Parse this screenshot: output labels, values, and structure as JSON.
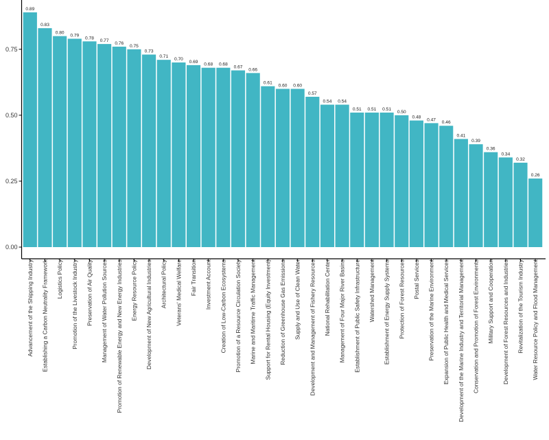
{
  "colors": {
    "bar": "#41b6c4",
    "axis": "#000000",
    "text": "#333333"
  },
  "chart_data": {
    "type": "bar",
    "title": "",
    "xlabel": "",
    "ylabel": "",
    "ylim": [
      0,
      0.89
    ],
    "grid": false,
    "y_ticks": [
      "0.00",
      "0.25",
      "0.50",
      "0.75"
    ],
    "y_tick_values": [
      0,
      0.25,
      0.5,
      0.75
    ],
    "categories": [
      "Advancement of the Shipping Industry",
      "Establishing a Carbon Neutrality Framework",
      "Logistics Policy",
      "Promotion of the Livestock Industry",
      "Preservation of Air Quality",
      "Management of Water Pollution Sources",
      "Promotion of Renewable Energy and New Energy Industries",
      "Energy Resource Policy",
      "Development of New Agricultural Industries",
      "Architectural Policy",
      "Veterans' Medical Welfare",
      "Fair Transition",
      "Investment Account",
      "Creation of Low-Carbon Ecosystems",
      "Promotion of a Resource Circulation Society",
      "Marine and Maritime Traffic Management",
      "Support for Rental Housing (Equity Investment)",
      "Reduction of Greenhouse Gas Emissions",
      "Supply and Use of Clean Water",
      "Development and Management of Fishery Resources",
      "National Rehabilitation Center",
      "Management of Four Major River Basins",
      "Establishment of Public Safety Infrastructure",
      "Watershed Management",
      "Establishment of Energy Supply Systems",
      "Protection of Forest Resources",
      "Postal Services",
      "Preservation of the Marine Environment",
      "Expansion of Public Health and Medical Services",
      "Development of the Marine Industry and Territorial Management",
      "Conservation and Promotion of Forest Environments",
      "Military Support and Cooperation",
      "Development of Forest Resources and Industries",
      "Revitalization of the Tourism Industry",
      "Water Resource Policy and Flood Management"
    ],
    "values": [
      0.89,
      0.83,
      0.8,
      0.79,
      0.78,
      0.77,
      0.76,
      0.75,
      0.73,
      0.71,
      0.7,
      0.69,
      0.68,
      0.68,
      0.67,
      0.66,
      0.61,
      0.6,
      0.6,
      0.57,
      0.54,
      0.54,
      0.51,
      0.51,
      0.51,
      0.5,
      0.48,
      0.47,
      0.46,
      0.41,
      0.39,
      0.36,
      0.34,
      0.32,
      0.26
    ],
    "value_labels": [
      "0.89",
      "0.83",
      "0.80",
      "0.79",
      "0.78",
      "0.77",
      "0.76",
      "0.75",
      "0.73",
      "0.71",
      "0.70",
      "0.69",
      "0.68",
      "0.68",
      "0.67",
      "0.66",
      "0.61",
      "0.60",
      "0.60",
      "0.57",
      "0.54",
      "0.54",
      "0.51",
      "0.51",
      "0.51",
      "0.50",
      "0.48",
      "0.47",
      "0.46",
      "0.41",
      "0.39",
      "0.36",
      "0.34",
      "0.32",
      "0.26"
    ]
  }
}
